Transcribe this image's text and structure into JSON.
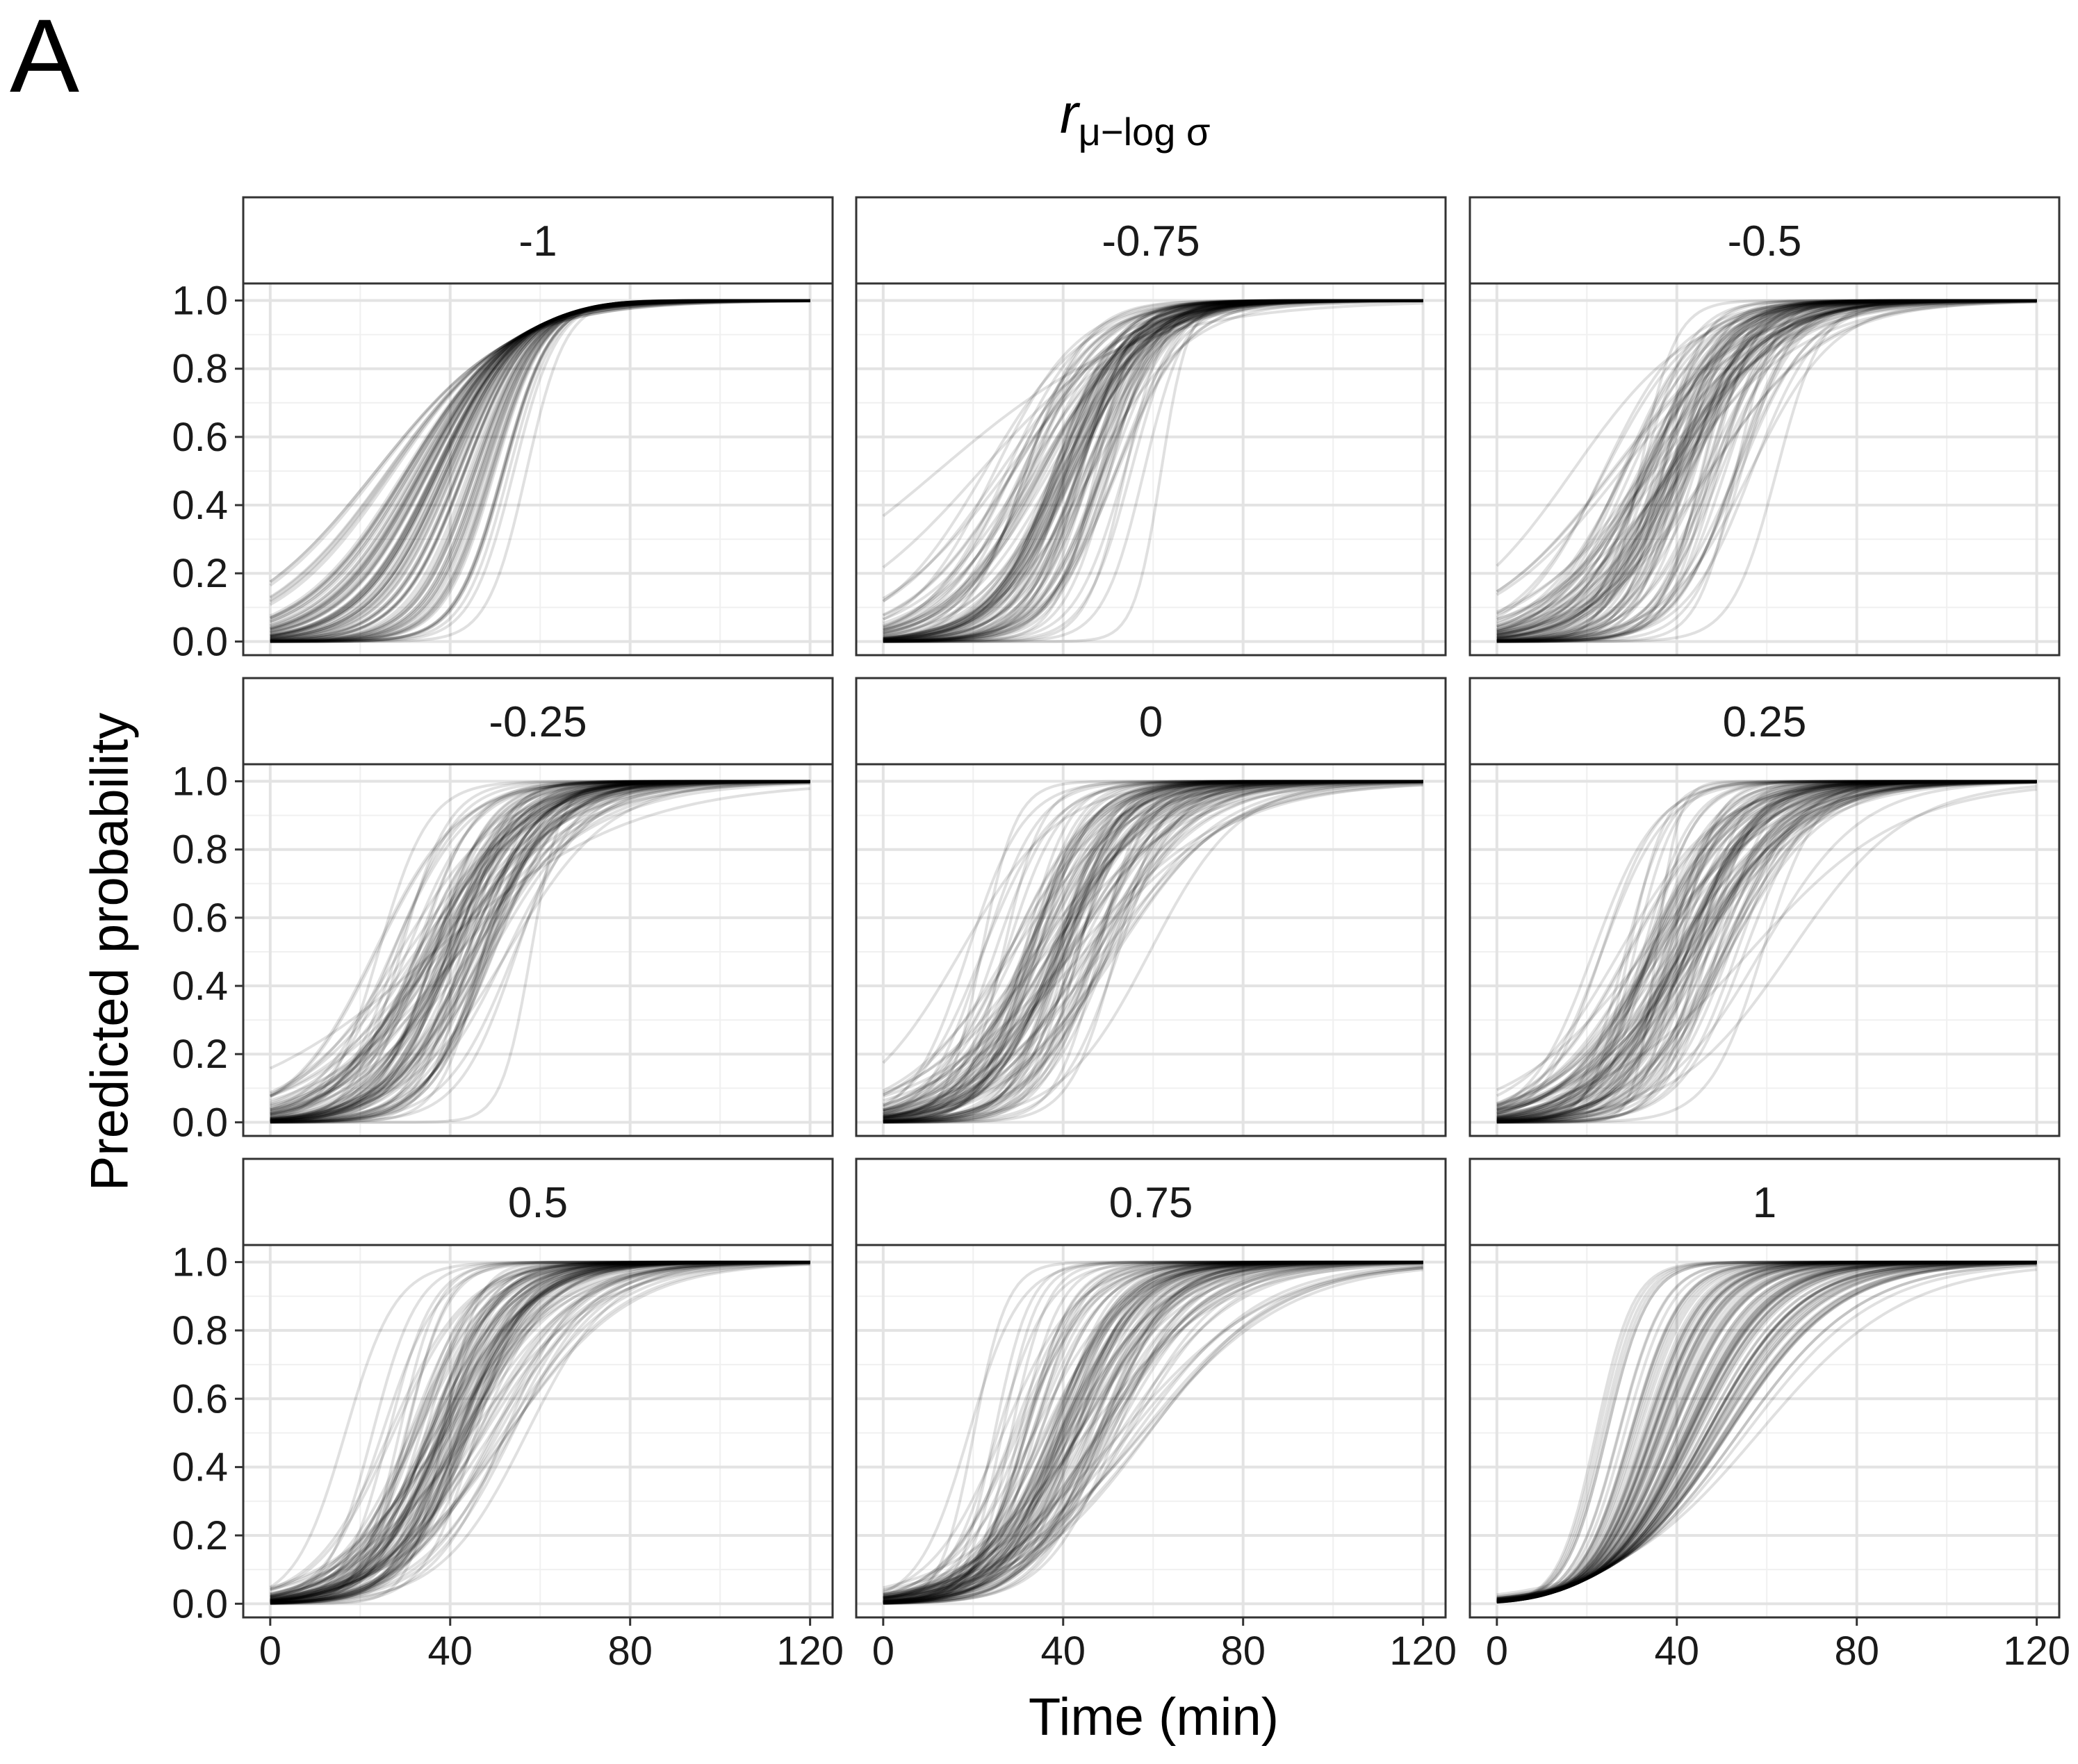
{
  "figure": {
    "panel_letter": "A",
    "facet_title": {
      "symbol": "r",
      "subscript": "μ−log σ"
    },
    "xlabel": "Time (min)",
    "ylabel": "Predicted probability"
  },
  "chart_data": {
    "type": "line",
    "layout": "facet-grid-3x3",
    "facet_variable": "r μ−log σ",
    "facets": [
      "-1",
      "-0.75",
      "-0.5",
      "-0.25",
      "0",
      "0.25",
      "0.5",
      "0.75",
      "1"
    ],
    "facet_correlation": [
      -1,
      -0.75,
      -0.5,
      -0.25,
      0,
      0.25,
      0.5,
      0.75,
      1
    ],
    "x": {
      "label": "Time (min)",
      "lim": [
        -6,
        125
      ],
      "ticks": [
        0,
        40,
        80,
        120
      ],
      "tick_labels": [
        "0",
        "40",
        "80",
        "120"
      ],
      "minor": [
        20,
        60,
        100
      ]
    },
    "y": {
      "label": "Predicted probability",
      "lim": [
        -0.04,
        1.05
      ],
      "ticks": [
        0.0,
        0.2,
        0.4,
        0.6,
        0.8,
        1.0
      ],
      "tick_labels": [
        "0.0",
        "0.2",
        "0.4",
        "0.6",
        "0.8",
        "1.0"
      ],
      "minor": [
        0.1,
        0.3,
        0.5,
        0.7,
        0.9
      ]
    },
    "curve_model": "logistic cumulative probability over time, many semi-transparent black curves per facet",
    "curves_per_facet": 100,
    "x_range": [
      0,
      120
    ],
    "location_mean_min": 40,
    "location_sd_min": 8,
    "log_scale_mean": 2.1,
    "log_scale_sd": 0.3,
    "line_color": "#000000",
    "line_alpha": 0.12,
    "grid": true,
    "theme": "bw"
  }
}
